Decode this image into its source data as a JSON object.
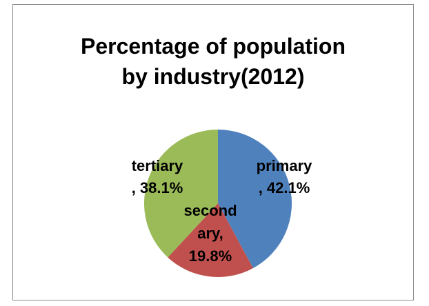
{
  "chart_data": {
    "type": "pie",
    "title": "Percentage of population by industry(2012)",
    "title_lines": [
      "Percentage of population",
      "by industry(2012)"
    ],
    "slices": [
      {
        "name": "primary",
        "value": 42.1,
        "label_lines": [
          "primary",
          ", 42.1%"
        ]
      },
      {
        "name": "secondary",
        "value": 19.8,
        "label_lines": [
          "second",
          "ary,",
          "19.8%"
        ]
      },
      {
        "name": "tertiary",
        "value": 38.1,
        "label_lines": [
          "tertiary",
          ", 38.1%"
        ]
      }
    ],
    "legend": "none",
    "colors": [
      "#4f81bd",
      "#c0504d",
      "#9bbb59"
    ]
  }
}
